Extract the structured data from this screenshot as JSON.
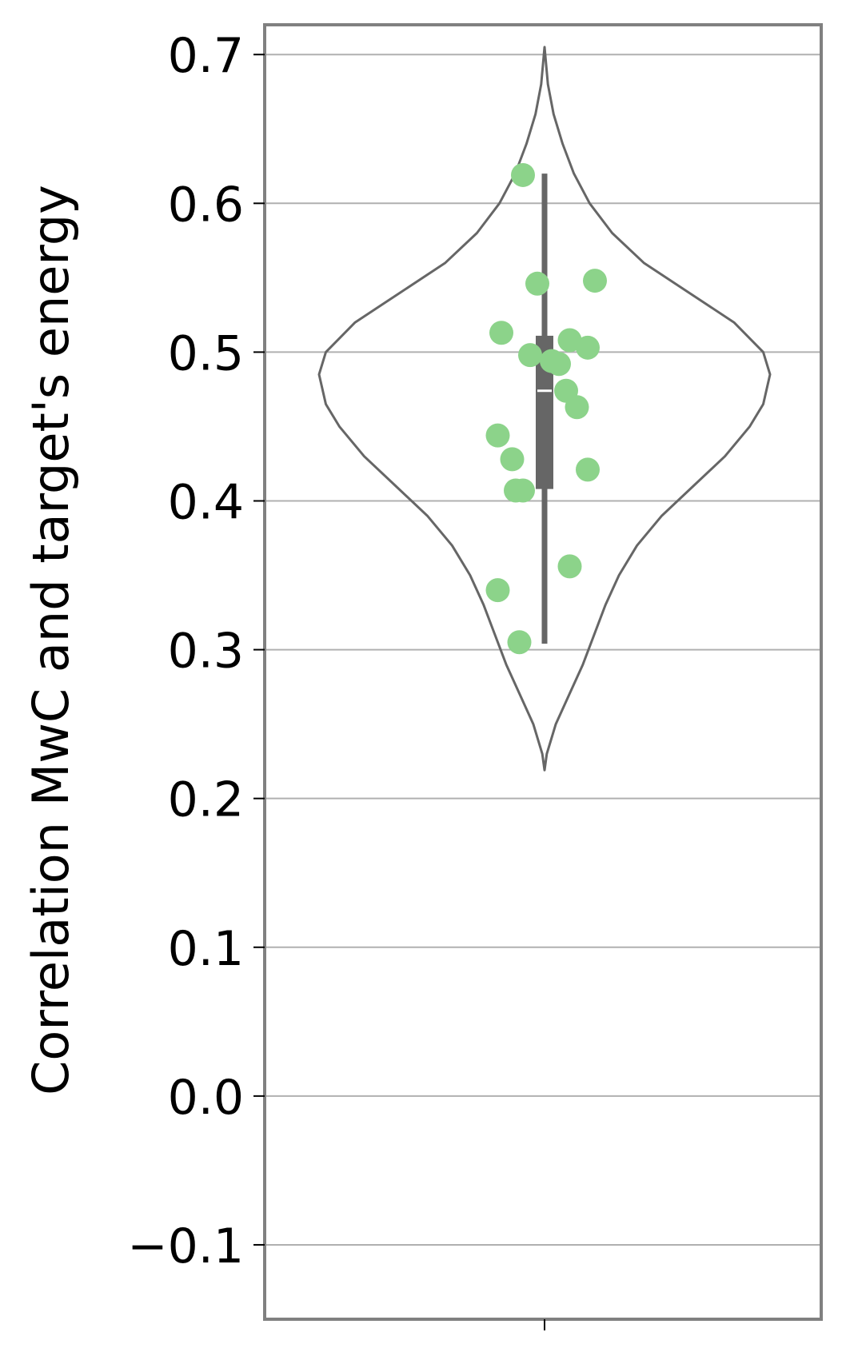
{
  "chart_data": {
    "type": "violin",
    "title": "",
    "xlabel": "",
    "ylabel": "Correlation MwC and target's energy",
    "ylim": [
      -0.15,
      0.72
    ],
    "yticks": [
      -0.1,
      0.0,
      0.1,
      0.2,
      0.3,
      0.4,
      0.5,
      0.6,
      0.7
    ],
    "ytick_labels": [
      "−0.1",
      "0.0",
      "0.1",
      "0.2",
      "0.3",
      "0.4",
      "0.5",
      "0.6",
      "0.7"
    ],
    "grid": "horizontal",
    "violin": {
      "range": [
        0.219,
        0.705
      ],
      "density": [
        [
          0.219,
          0.0
        ],
        [
          0.23,
          0.01
        ],
        [
          0.25,
          0.05
        ],
        [
          0.27,
          0.11
        ],
        [
          0.29,
          0.17
        ],
        [
          0.31,
          0.22
        ],
        [
          0.33,
          0.27
        ],
        [
          0.35,
          0.33
        ],
        [
          0.37,
          0.41
        ],
        [
          0.39,
          0.52
        ],
        [
          0.41,
          0.66
        ],
        [
          0.43,
          0.8
        ],
        [
          0.45,
          0.91
        ],
        [
          0.465,
          0.97
        ],
        [
          0.485,
          1.0
        ],
        [
          0.5,
          0.97
        ],
        [
          0.52,
          0.84
        ],
        [
          0.54,
          0.64
        ],
        [
          0.56,
          0.44
        ],
        [
          0.58,
          0.3
        ],
        [
          0.6,
          0.2
        ],
        [
          0.62,
          0.13
        ],
        [
          0.64,
          0.08
        ],
        [
          0.66,
          0.04
        ],
        [
          0.68,
          0.015
        ],
        [
          0.705,
          0.0
        ]
      ]
    },
    "box": {
      "q1": 0.408,
      "median": 0.474,
      "q3": 0.511,
      "whisker_low": 0.304,
      "whisker_high": 0.62
    },
    "points": [
      {
        "x": -0.06,
        "y": 0.619
      },
      {
        "x": -0.02,
        "y": 0.546
      },
      {
        "x": 0.14,
        "y": 0.548
      },
      {
        "x": -0.12,
        "y": 0.513
      },
      {
        "x": 0.07,
        "y": 0.508
      },
      {
        "x": 0.12,
        "y": 0.503
      },
      {
        "x": -0.04,
        "y": 0.498
      },
      {
        "x": 0.02,
        "y": 0.494
      },
      {
        "x": 0.04,
        "y": 0.492
      },
      {
        "x": 0.06,
        "y": 0.474
      },
      {
        "x": 0.09,
        "y": 0.463
      },
      {
        "x": -0.13,
        "y": 0.444
      },
      {
        "x": -0.09,
        "y": 0.428
      },
      {
        "x": 0.12,
        "y": 0.421
      },
      {
        "x": -0.08,
        "y": 0.407
      },
      {
        "x": -0.06,
        "y": 0.407
      },
      {
        "x": 0.07,
        "y": 0.356
      },
      {
        "x": -0.13,
        "y": 0.34
      },
      {
        "x": -0.07,
        "y": 0.305
      }
    ],
    "colors": {
      "violin_edge": "#666666",
      "box": "#666666",
      "median": "#ffffff",
      "points": "#8cd38a",
      "grid": "#b0b0b0",
      "frame": "#808080"
    }
  }
}
